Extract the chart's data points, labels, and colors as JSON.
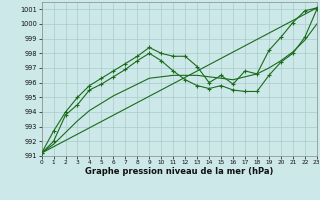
{
  "xlabel": "Graphe pression niveau de la mer (hPa)",
  "bg_color": "#cce8e8",
  "grid_color": "#aacccc",
  "line_color": "#1a6b1a",
  "ylim": [
    991,
    1001.5
  ],
  "xlim": [
    0,
    23
  ],
  "yticks": [
    991,
    992,
    993,
    994,
    995,
    996,
    997,
    998,
    999,
    1000,
    1001
  ],
  "xticks": [
    0,
    1,
    2,
    3,
    4,
    5,
    6,
    7,
    8,
    9,
    10,
    11,
    12,
    13,
    14,
    15,
    16,
    17,
    18,
    19,
    20,
    21,
    22,
    23
  ],
  "series": [
    {
      "x": [
        0,
        1,
        2,
        3,
        4,
        5,
        6,
        7,
        8,
        9,
        10,
        11,
        12,
        13,
        14,
        15,
        16,
        17,
        18,
        19,
        20,
        21,
        22,
        23
      ],
      "y": [
        991.2,
        992.7,
        994.0,
        995.0,
        995.8,
        996.3,
        996.8,
        997.3,
        997.8,
        998.4,
        998.0,
        997.8,
        997.8,
        997.1,
        996.0,
        996.5,
        995.9,
        996.8,
        996.6,
        998.2,
        999.1,
        1000.1,
        1000.9,
        1001.1
      ],
      "marker": true
    },
    {
      "x": [
        0,
        1,
        2,
        3,
        4,
        5,
        6,
        7,
        8,
        9,
        10,
        11,
        12,
        13,
        14,
        15,
        16,
        17,
        18,
        19,
        20,
        21,
        22,
        23
      ],
      "y": [
        991.2,
        992.0,
        993.8,
        994.5,
        995.5,
        995.9,
        996.4,
        996.9,
        997.5,
        998.0,
        997.5,
        996.8,
        996.2,
        995.8,
        995.6,
        995.8,
        995.5,
        995.4,
        995.4,
        996.5,
        997.4,
        998.0,
        999.1,
        1001.0
      ],
      "marker": true
    },
    {
      "x": [
        0,
        23
      ],
      "y": [
        991.2,
        1001.1
      ],
      "marker": false
    },
    {
      "x": [
        0,
        1,
        2,
        3,
        4,
        5,
        6,
        7,
        8,
        9,
        10,
        11,
        12,
        13,
        14,
        15,
        16,
        17,
        18,
        19,
        20,
        21,
        22,
        23
      ],
      "y": [
        991.2,
        991.8,
        992.6,
        993.4,
        994.1,
        994.6,
        995.1,
        995.5,
        995.9,
        996.3,
        996.4,
        996.5,
        996.5,
        996.5,
        996.4,
        996.3,
        996.2,
        996.4,
        996.6,
        997.0,
        997.5,
        998.1,
        998.9,
        1000.0
      ],
      "marker": false
    }
  ]
}
